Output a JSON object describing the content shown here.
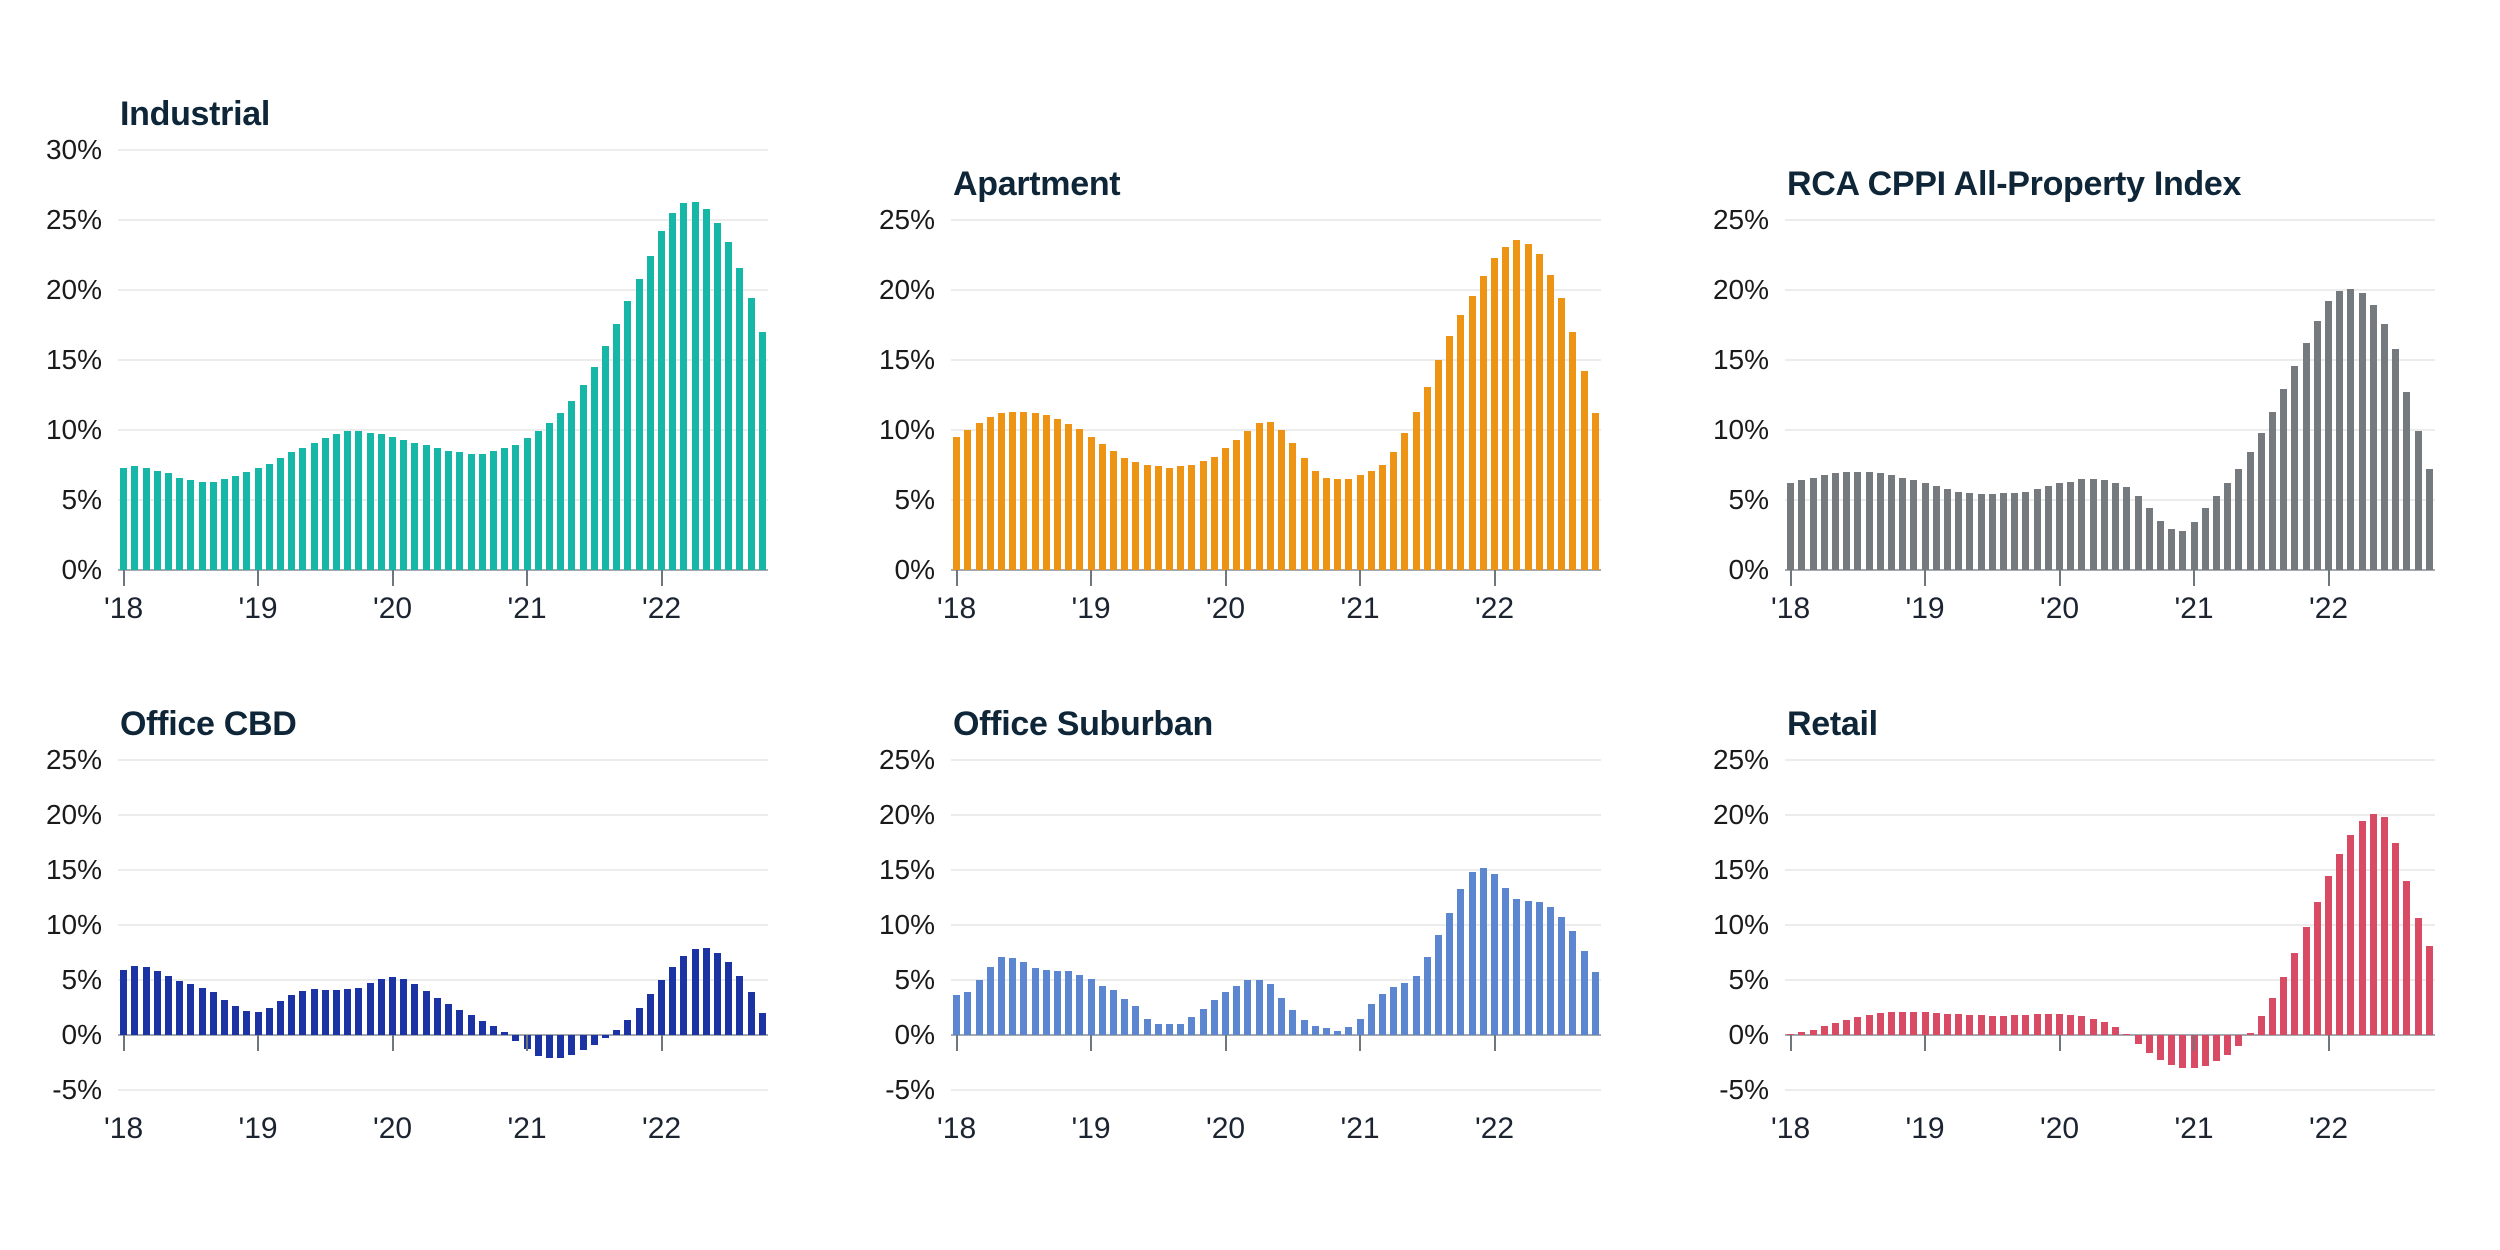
{
  "figure": {
    "background": "#ffffff",
    "layout": "2 rows x 3 columns of small-multiple bar charts",
    "gridline_color": "#ececec",
    "axis_color": "#a3a9ae",
    "title_color": "#0e2638",
    "label_color": "#1a1a1a"
  },
  "chart_data": [
    {
      "type": "bar",
      "title": "Industrial",
      "color": "#16b7a7",
      "ylim": [
        0,
        30
      ],
      "ytick_step": 5,
      "y_tick_labels": [
        "0%",
        "5%",
        "10%",
        "15%",
        "20%",
        "25%",
        "30%"
      ],
      "x_tick_labels": [
        "'18",
        "'19",
        "'20",
        "'21",
        "'22"
      ],
      "x_tick_every": 12,
      "x_start": "Jan 2018",
      "x_end": "Oct 2022",
      "frequency": "monthly",
      "grid": "horizontal",
      "legend": "none",
      "values": [
        7.3,
        7.4,
        7.3,
        7.1,
        6.9,
        6.6,
        6.4,
        6.3,
        6.3,
        6.5,
        6.7,
        7.0,
        7.3,
        7.6,
        8.0,
        8.4,
        8.7,
        9.1,
        9.4,
        9.7,
        9.9,
        9.9,
        9.8,
        9.7,
        9.5,
        9.3,
        9.1,
        8.9,
        8.7,
        8.5,
        8.4,
        8.3,
        8.3,
        8.5,
        8.7,
        8.9,
        9.4,
        9.9,
        10.5,
        11.2,
        12.1,
        13.2,
        14.5,
        16.0,
        17.6,
        19.2,
        20.8,
        22.4,
        24.2,
        25.5,
        26.2,
        26.3,
        25.8,
        24.8,
        23.4,
        21.6,
        19.4,
        17.0
      ]
    },
    {
      "type": "bar",
      "title": "Apartment",
      "color": "#ee9414",
      "ylim": [
        0,
        25
      ],
      "ytick_step": 5,
      "y_tick_labels": [
        "0%",
        "5%",
        "10%",
        "15%",
        "20%",
        "25%"
      ],
      "x_tick_labels": [
        "'18",
        "'19",
        "'20",
        "'21",
        "'22"
      ],
      "x_tick_every": 12,
      "x_start": "Jan 2018",
      "x_end": "Oct 2022",
      "frequency": "monthly",
      "grid": "horizontal",
      "legend": "none",
      "values": [
        9.5,
        10.0,
        10.5,
        10.9,
        11.2,
        11.3,
        11.3,
        11.2,
        11.1,
        10.8,
        10.4,
        10.1,
        9.5,
        9.0,
        8.5,
        8.0,
        7.7,
        7.5,
        7.4,
        7.3,
        7.4,
        7.5,
        7.8,
        8.1,
        8.7,
        9.3,
        9.9,
        10.5,
        10.6,
        10.0,
        9.1,
        8.0,
        7.1,
        6.6,
        6.5,
        6.5,
        6.8,
        7.1,
        7.5,
        8.4,
        9.8,
        11.3,
        13.1,
        15.0,
        16.7,
        18.2,
        19.6,
        21.0,
        22.3,
        23.1,
        23.6,
        23.3,
        22.6,
        21.1,
        19.4,
        17.0,
        14.2,
        11.2
      ]
    },
    {
      "type": "bar",
      "title": "RCA CPPI All-Property Index",
      "color": "#757a7e",
      "ylim": [
        0,
        25
      ],
      "ytick_step": 5,
      "y_tick_labels": [
        "0%",
        "5%",
        "10%",
        "15%",
        "20%",
        "25%"
      ],
      "x_tick_labels": [
        "'18",
        "'19",
        "'20",
        "'21",
        "'22"
      ],
      "x_tick_every": 12,
      "x_start": "Jan 2018",
      "x_end": "Oct 2022",
      "frequency": "monthly",
      "grid": "horizontal",
      "legend": "none",
      "values": [
        6.2,
        6.4,
        6.6,
        6.8,
        6.9,
        7.0,
        7.0,
        7.0,
        6.9,
        6.8,
        6.6,
        6.4,
        6.2,
        6.0,
        5.8,
        5.6,
        5.5,
        5.4,
        5.4,
        5.5,
        5.5,
        5.6,
        5.8,
        6.0,
        6.2,
        6.3,
        6.5,
        6.5,
        6.4,
        6.2,
        5.9,
        5.3,
        4.4,
        3.5,
        2.9,
        2.8,
        3.4,
        4.4,
        5.3,
        6.2,
        7.2,
        8.4,
        9.8,
        11.3,
        12.9,
        14.6,
        16.2,
        17.8,
        19.2,
        19.9,
        20.1,
        19.8,
        18.9,
        17.6,
        15.8,
        12.7,
        9.9,
        7.2
      ]
    },
    {
      "type": "bar",
      "title": "Office CBD",
      "color": "#1b33a3",
      "ylim": [
        -5,
        25
      ],
      "ytick_step": 5,
      "y_tick_labels": [
        "-5%",
        "0%",
        "5%",
        "10%",
        "15%",
        "20%",
        "25%"
      ],
      "x_tick_labels": [
        "'18",
        "'19",
        "'20",
        "'21",
        "'22"
      ],
      "x_tick_every": 12,
      "x_start": "Jan 2018",
      "x_end": "Oct 2022",
      "frequency": "monthly",
      "grid": "horizontal",
      "legend": "none",
      "values": [
        5.9,
        6.3,
        6.2,
        5.8,
        5.4,
        4.9,
        4.6,
        4.3,
        3.9,
        3.2,
        2.6,
        2.2,
        2.1,
        2.5,
        3.1,
        3.6,
        4.0,
        4.2,
        4.1,
        4.1,
        4.2,
        4.3,
        4.7,
        5.1,
        5.3,
        5.1,
        4.6,
        4.0,
        3.4,
        2.8,
        2.3,
        1.8,
        1.3,
        0.8,
        0.3,
        -0.5,
        -1.3,
        -1.9,
        -2.1,
        -2.1,
        -1.8,
        -1.4,
        -0.9,
        -0.3,
        0.5,
        1.4,
        2.5,
        3.7,
        5.0,
        6.2,
        7.2,
        7.8,
        7.9,
        7.5,
        6.6,
        5.4,
        3.9,
        2.0
      ]
    },
    {
      "type": "bar",
      "title": "Office Suburban",
      "color": "#5d86d1",
      "ylim": [
        -5,
        25
      ],
      "ytick_step": 5,
      "y_tick_labels": [
        "-5%",
        "0%",
        "5%",
        "10%",
        "15%",
        "20%",
        "25%"
      ],
      "x_tick_labels": [
        "'18",
        "'19",
        "'20",
        "'21",
        "'22"
      ],
      "x_tick_every": 12,
      "x_start": "Jan 2018",
      "x_end": "Oct 2022",
      "frequency": "monthly",
      "grid": "horizontal",
      "legend": "none",
      "values": [
        3.6,
        3.9,
        5.0,
        6.2,
        7.1,
        7.0,
        6.6,
        6.1,
        5.9,
        5.8,
        5.8,
        5.5,
        5.1,
        4.5,
        4.1,
        3.3,
        2.6,
        1.5,
        1.0,
        1.0,
        1.0,
        1.6,
        2.4,
        3.2,
        3.9,
        4.5,
        5.0,
        5.0,
        4.6,
        3.4,
        2.3,
        1.4,
        0.8,
        0.6,
        0.4,
        0.7,
        1.5,
        2.8,
        3.7,
        4.4,
        4.7,
        5.4,
        7.1,
        9.1,
        11.1,
        13.3,
        14.8,
        15.2,
        14.6,
        13.4,
        12.4,
        12.2,
        12.1,
        11.6,
        10.7,
        9.5,
        7.6,
        5.7
      ]
    },
    {
      "type": "bar",
      "title": "Retail",
      "color": "#d94a64",
      "ylim": [
        -5,
        25
      ],
      "ytick_step": 5,
      "y_tick_labels": [
        "-5%",
        "0%",
        "5%",
        "10%",
        "15%",
        "20%",
        "25%"
      ],
      "x_tick_labels": [
        "'18",
        "'19",
        "'20",
        "'21",
        "'22"
      ],
      "x_tick_every": 12,
      "x_start": "Jan 2018",
      "x_end": "Oct 2022",
      "frequency": "monthly",
      "grid": "horizontal",
      "legend": "none",
      "values": [
        0.1,
        0.3,
        0.5,
        0.8,
        1.1,
        1.4,
        1.6,
        1.8,
        2.0,
        2.1,
        2.1,
        2.1,
        2.1,
        2.0,
        1.9,
        1.9,
        1.8,
        1.8,
        1.7,
        1.7,
        1.8,
        1.8,
        1.9,
        1.9,
        1.9,
        1.8,
        1.7,
        1.5,
        1.2,
        0.7,
        0.1,
        -0.8,
        -1.6,
        -2.3,
        -2.7,
        -3.0,
        -3.0,
        -2.8,
        -2.4,
        -1.8,
        -1.0,
        0.2,
        1.7,
        3.4,
        5.3,
        7.5,
        9.8,
        12.1,
        14.5,
        16.5,
        18.2,
        19.5,
        20.1,
        19.8,
        17.5,
        14.0,
        10.6,
        8.1
      ]
    }
  ]
}
